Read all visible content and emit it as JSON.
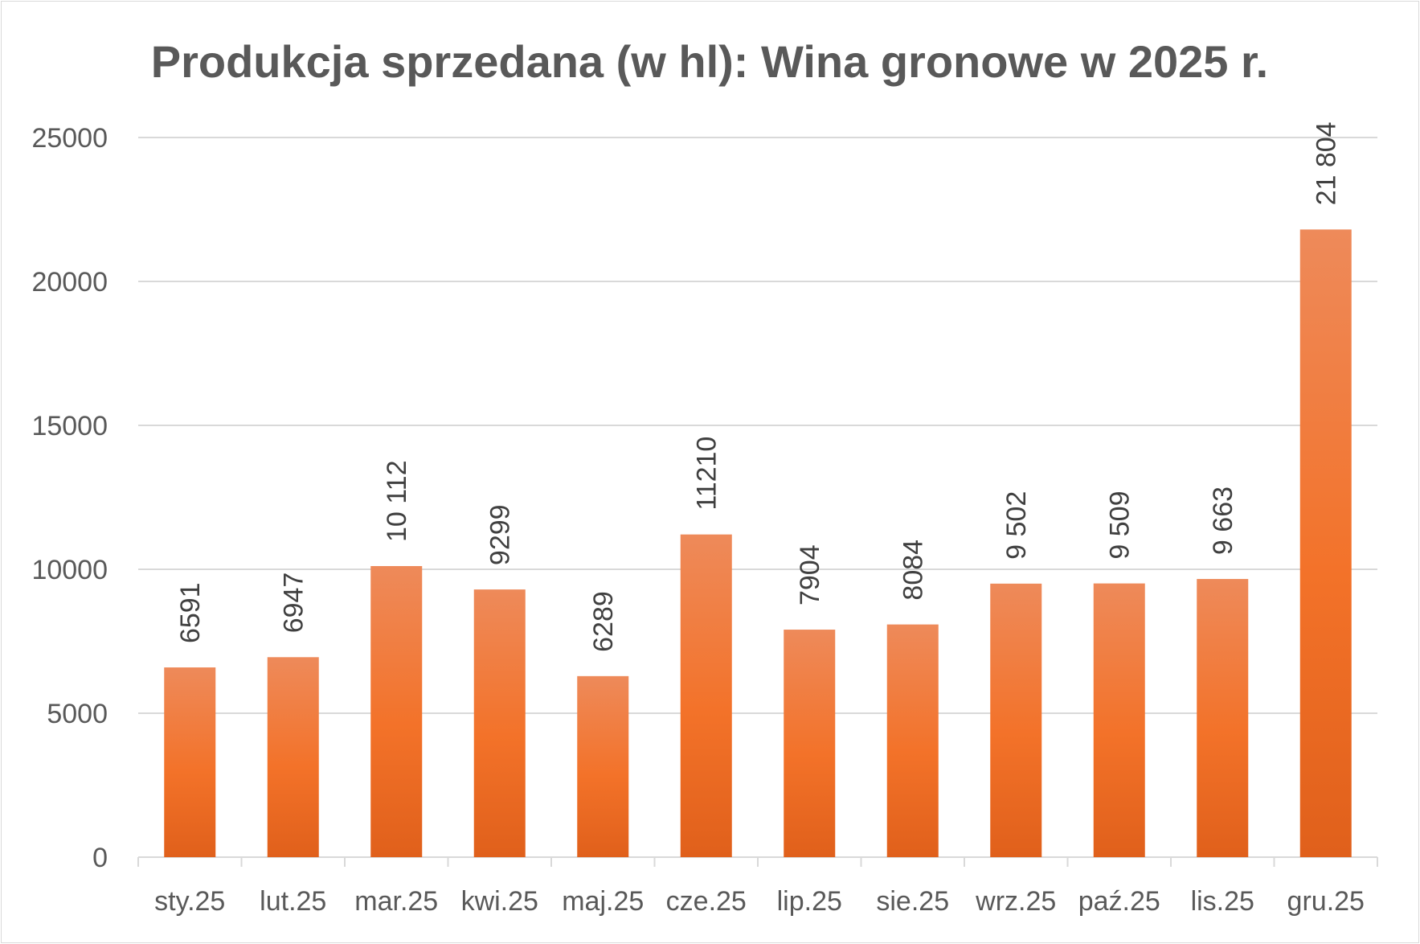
{
  "chart_data": {
    "type": "bar",
    "title": "Produkcja sprzedana (w hl): Wina gronowe w 2025 r.",
    "xlabel": "",
    "ylabel": "",
    "categories": [
      "sty.25",
      "lut.25",
      "mar.25",
      "kwi.25",
      "maj.25",
      "cze.25",
      "lip.25",
      "sie.25",
      "wrz.25",
      "paź.25",
      "lis.25",
      "gru.25"
    ],
    "values": [
      6591,
      6947,
      10112,
      9299,
      6289,
      11210,
      7904,
      8084,
      9502,
      9509,
      9663,
      21804
    ],
    "data_labels": [
      "6591",
      "6947",
      "10 112",
      "9299",
      "6289",
      "11210",
      "7904",
      "8084",
      "9 502",
      "9 509",
      "9 663",
      "21 804"
    ],
    "ylim": [
      0,
      25000
    ],
    "yticks": [
      0,
      5000,
      10000,
      15000,
      20000,
      25000
    ],
    "grid": true,
    "legend": "none",
    "colors": {
      "bar_top": "#ee8a5a",
      "bar_mid": "#f37229",
      "bar_bottom": "#e0601b",
      "grid": "#d9d9d9",
      "text": "#595959"
    }
  }
}
